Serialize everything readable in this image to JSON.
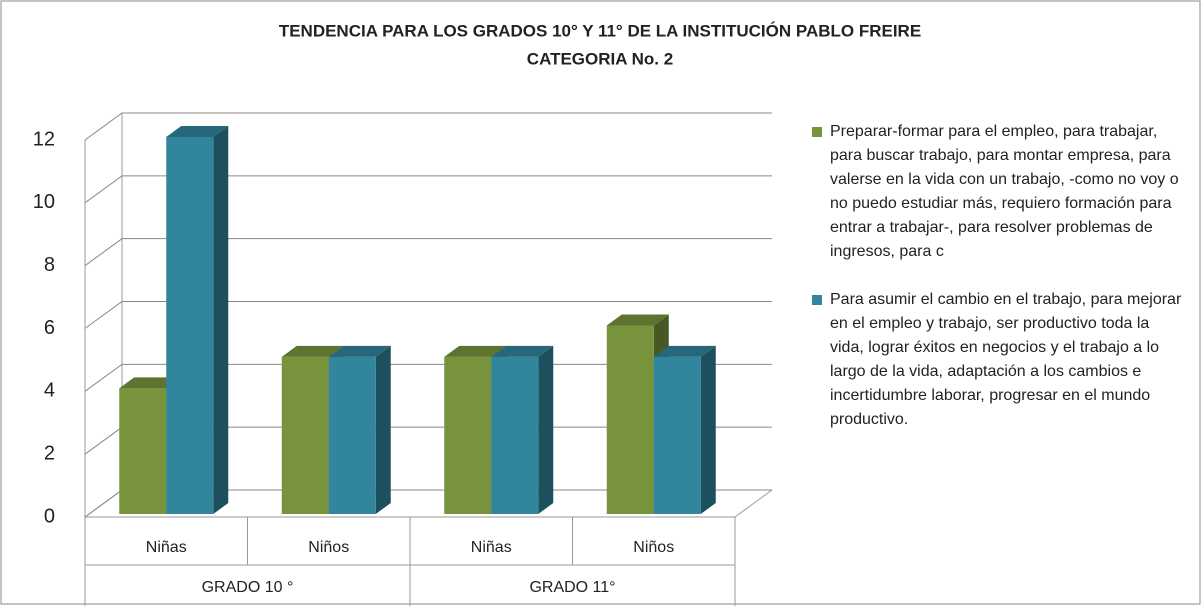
{
  "chart_data": {
    "type": "bar3d",
    "title": "TENDENCIA PARA LOS GRADOS 10° Y 11°  DE LA INSTITUCIÓN PABLO FREIRE",
    "subtitle": "CATEGORIA  No. 2",
    "categories": [
      "Niñas",
      "Niños",
      "Niñas",
      "Niños"
    ],
    "groups": [
      "GRADO 10 °",
      "GRADO 11°"
    ],
    "series": [
      {
        "name": "Preparar-formar para el empleo, para trabajar, para buscar trabajo, para montar empresa, para valerse en la vida con un trabajo, -como no voy o no puedo estudiar más, requiero formación para entrar a trabajar-, para resolver problemas de ingresos, para c",
        "color": "#77933c",
        "values": [
          4,
          5,
          5,
          6
        ]
      },
      {
        "name": "Para asumir el cambio en el trabajo, para mejorar en el empleo y trabajo, ser productivo toda la vida, lograr éxitos en negocios y el trabajo a lo largo de la vida, adaptación a los cambios e incertidumbre laborar, progresar en el mundo productivo.",
        "color": "#31859c",
        "values": [
          12,
          5,
          5,
          5
        ]
      }
    ],
    "ylim": [
      0,
      12
    ],
    "yticks": [
      0,
      2,
      4,
      6,
      8,
      10,
      12
    ],
    "grid": true,
    "legend": "right"
  }
}
